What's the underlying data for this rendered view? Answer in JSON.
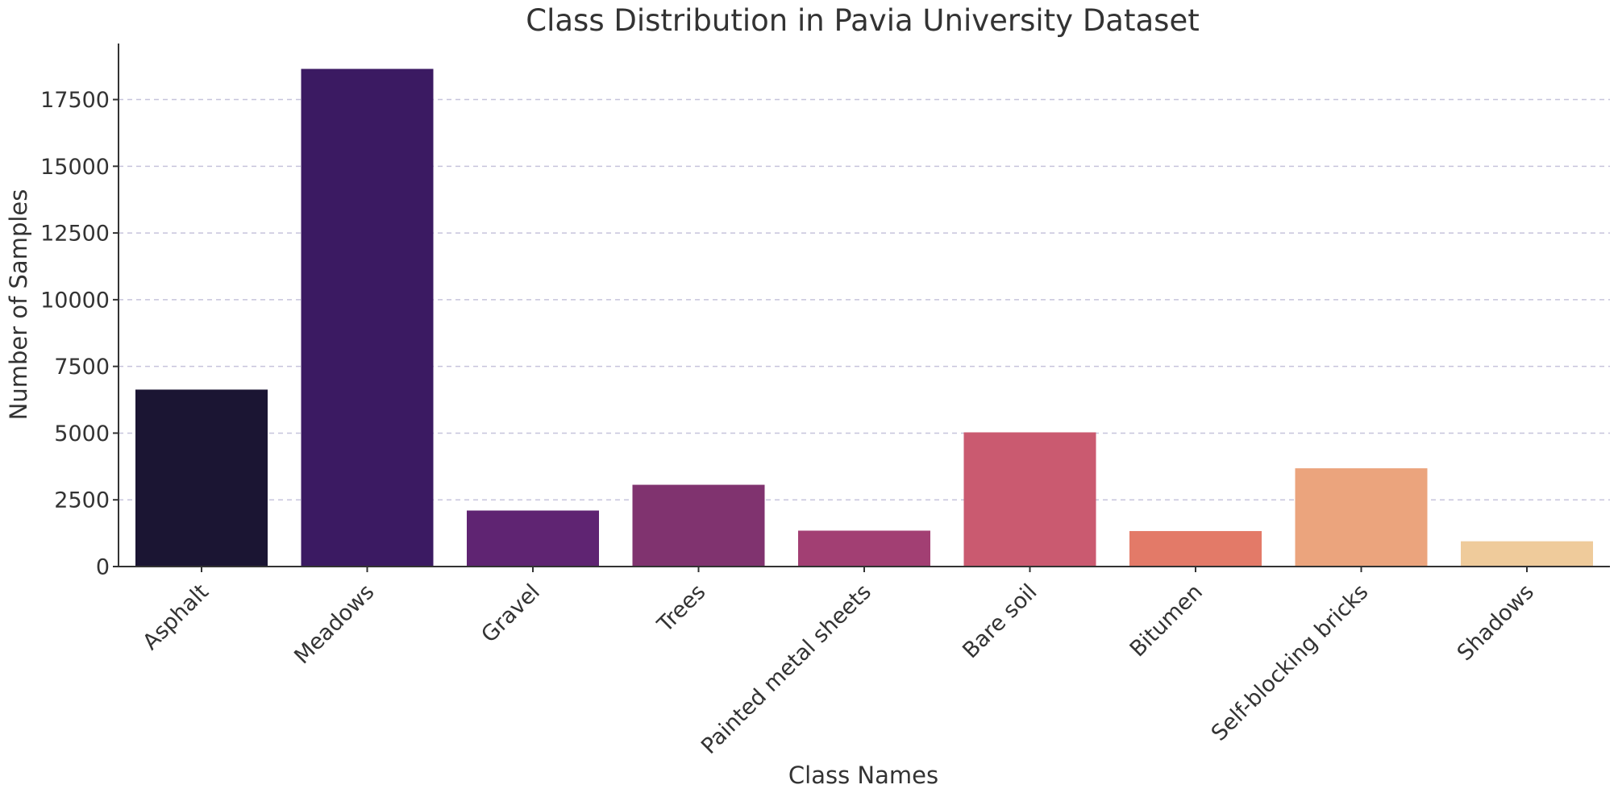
{
  "chart_data": {
    "type": "bar",
    "title": "Class Distribution in Pavia University Dataset",
    "xlabel": "Class Names",
    "ylabel": "Number of Samples",
    "categories": [
      "Asphalt",
      "Meadows",
      "Gravel",
      "Trees",
      "Painted metal sheets",
      "Bare soil",
      "Bitumen",
      "Self-blocking bricks",
      "Shadows"
    ],
    "values": [
      6631,
      18649,
      2099,
      3064,
      1345,
      5029,
      1330,
      3682,
      947
    ],
    "colors": [
      "#1b1533",
      "#3b1a62",
      "#5f2472",
      "#80336f",
      "#a23f73",
      "#ca5a70",
      "#e37a68",
      "#eba47d",
      "#efcb9b"
    ],
    "yticks": [
      0,
      2500,
      5000,
      7500,
      10000,
      12500,
      15000,
      17500
    ],
    "ylim": [
      0,
      19600
    ],
    "grid": "horizontal dashed",
    "legend": "none"
  }
}
